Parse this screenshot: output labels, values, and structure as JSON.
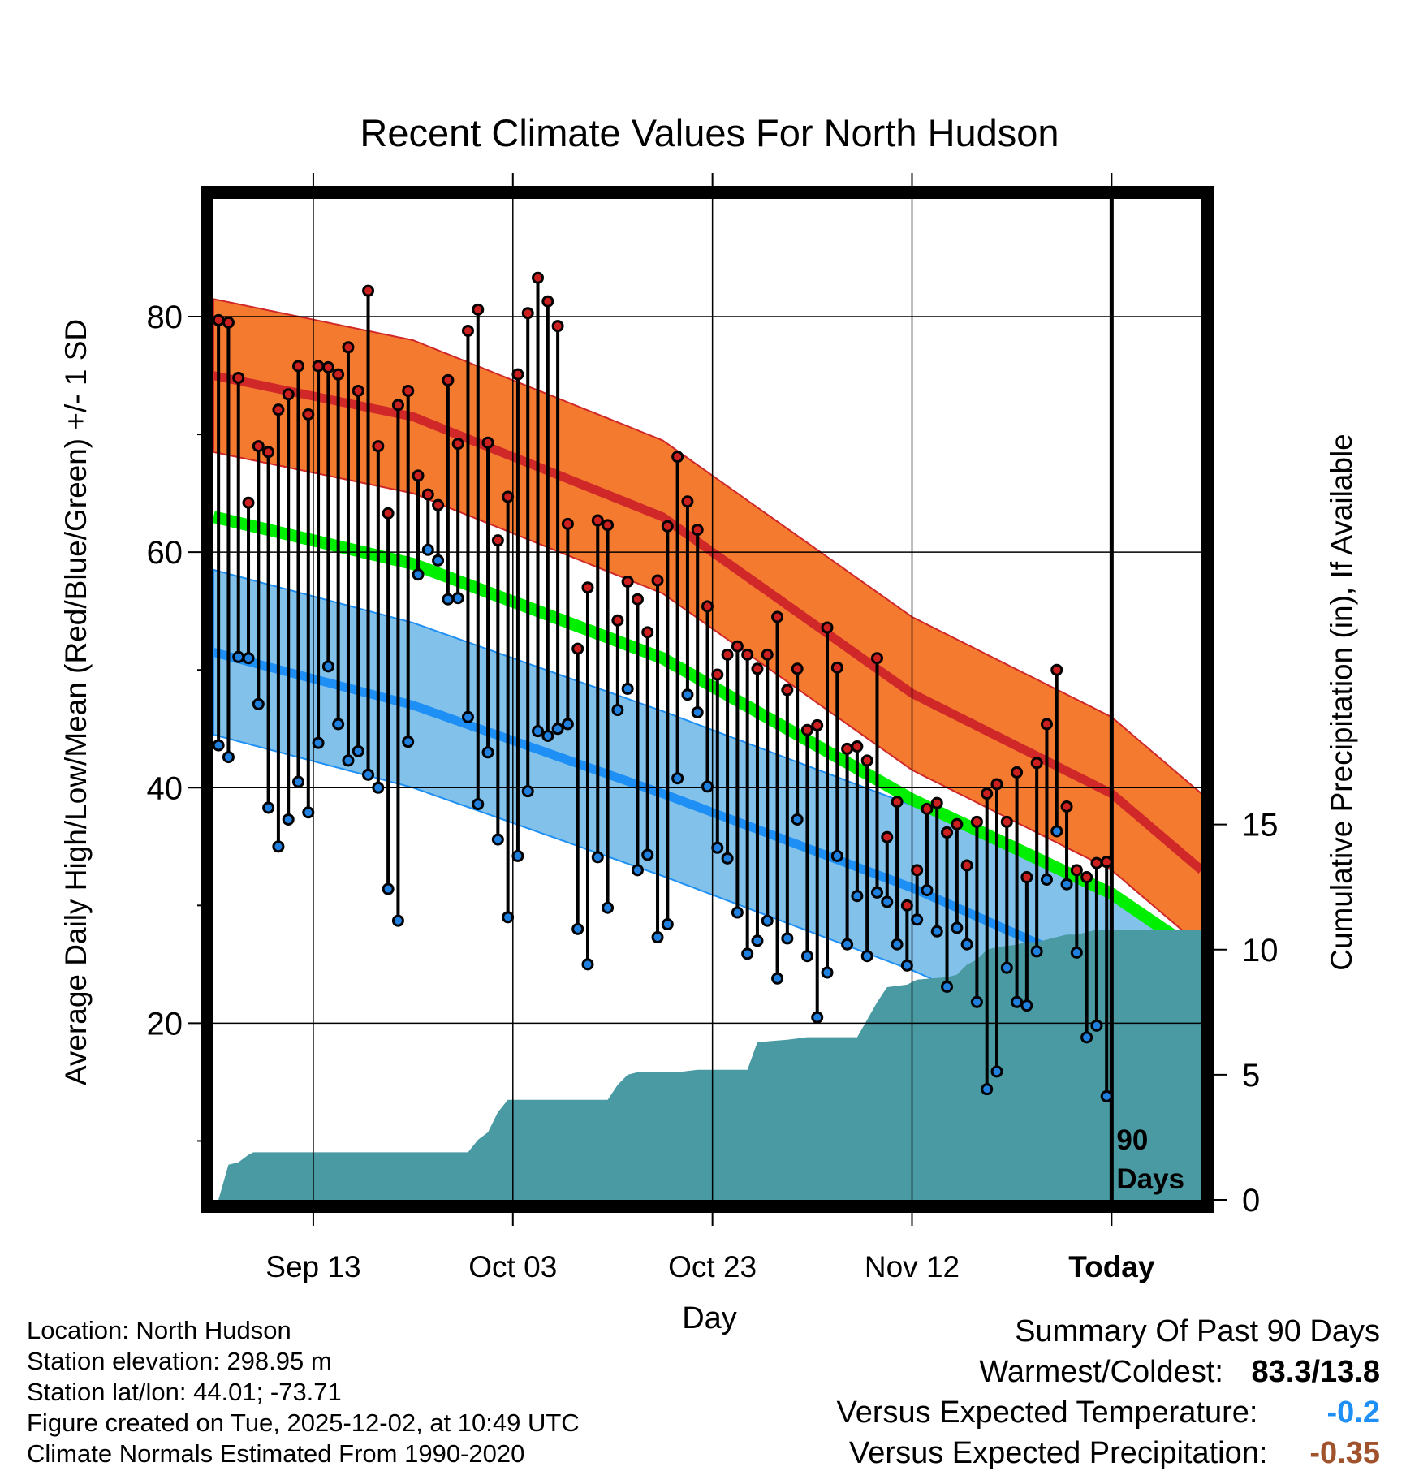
{
  "chart_data": {
    "type": "line",
    "title": "Recent Climate Values For North Hudson",
    "xlabel": "Day",
    "ylabel_left": "Average Daily High/Low/Mean (Red/Blue/Green) +/- 1 SD",
    "ylabel_right": "Cumulative Precipitation (in), If Available",
    "x_range": [
      -90,
      9
    ],
    "y_range": [
      5,
      90
    ],
    "precip_range": [
      0,
      40
    ],
    "x_tick_values": [
      -80,
      -60,
      -40,
      -20,
      0
    ],
    "x_tick_labels": [
      "Sep 13",
      "Oct 03",
      "Oct 23",
      "Nov 12",
      "Today"
    ],
    "y_tick_values": [
      20,
      40,
      60,
      80
    ],
    "y_tick_labels": [
      "20",
      "40",
      "60",
      "80"
    ],
    "precip_tick_values": [
      0,
      5,
      10,
      15
    ],
    "precip_tick_labels": [
      "0",
      "5",
      "10",
      "15"
    ],
    "today_label": "90 Days",
    "normal_high": [
      [
        -90,
        75.0
      ],
      [
        -70,
        71.5
      ],
      [
        -45,
        63.0
      ],
      [
        -20,
        48.0
      ],
      [
        0,
        39.5
      ],
      [
        9,
        33.0
      ]
    ],
    "high_sd": 6.5,
    "normal_low": [
      [
        -90,
        51.5
      ],
      [
        -70,
        47.0
      ],
      [
        -45,
        39.5
      ],
      [
        -20,
        31.5
      ],
      [
        0,
        24.0
      ],
      [
        9,
        19.0
      ]
    ],
    "low_sd": 7.0,
    "normal_mean": [
      [
        -90,
        63.0
      ],
      [
        -70,
        59.0
      ],
      [
        -45,
        51.0
      ],
      [
        -20,
        39.0
      ],
      [
        0,
        31.0
      ],
      [
        9,
        25.8
      ]
    ],
    "daily_high": [
      79.7,
      79.5,
      74.8,
      64.2,
      69.0,
      68.5,
      72.1,
      73.4,
      75.8,
      71.7,
      75.8,
      75.7,
      75.1,
      77.4,
      73.7,
      82.2,
      69.0,
      63.3,
      72.5,
      73.7,
      66.5,
      64.9,
      64.0,
      74.6,
      69.2,
      78.8,
      80.6,
      69.3,
      61.0,
      64.7,
      75.1,
      80.3,
      83.3,
      81.3,
      79.2,
      62.4,
      51.8,
      57.0,
      62.7,
      62.3,
      54.2,
      57.5,
      56.0,
      53.2,
      57.6,
      62.2,
      68.1,
      64.3,
      61.9,
      55.4,
      49.6,
      51.3,
      52.0,
      51.3,
      50.1,
      51.3,
      54.5,
      48.3,
      50.1,
      44.9,
      45.3,
      53.6,
      50.2,
      43.3,
      43.5,
      42.3,
      51.0,
      35.8,
      38.8,
      30.0,
      33.0,
      38.2,
      38.7,
      36.2,
      36.9,
      33.4,
      37.1,
      39.5,
      40.3,
      37.1,
      41.3,
      32.4,
      42.1,
      45.4,
      50.0,
      38.4,
      33.0,
      32.4,
      33.6,
      33.7
    ],
    "daily_low": [
      43.6,
      42.6,
      51.1,
      51.0,
      47.1,
      38.3,
      35.0,
      37.3,
      40.5,
      37.9,
      43.8,
      50.3,
      45.4,
      42.3,
      43.1,
      41.1,
      40.0,
      31.4,
      28.7,
      43.9,
      58.1,
      60.2,
      59.3,
      56.0,
      56.1,
      46.0,
      38.6,
      43.0,
      35.6,
      29.0,
      34.2,
      39.7,
      44.8,
      44.4,
      45.0,
      45.4,
      28.0,
      25.0,
      34.1,
      29.8,
      46.6,
      48.4,
      33.0,
      34.3,
      27.3,
      28.4,
      40.8,
      47.9,
      46.4,
      40.1,
      34.9,
      34.0,
      29.4,
      25.9,
      27.0,
      28.7,
      23.8,
      27.2,
      37.3,
      25.7,
      20.5,
      24.3,
      34.2,
      26.7,
      30.8,
      25.7,
      31.1,
      30.3,
      26.7,
      24.9,
      28.8,
      31.3,
      27.8,
      23.1,
      28.1,
      26.7,
      21.8,
      14.4,
      15.9,
      24.7,
      21.8,
      21.5,
      26.1,
      32.2,
      36.3,
      31.8,
      26.0,
      18.8,
      19.8,
      13.8
    ],
    "cumulative_precip": [
      [
        -89.5,
        0.0
      ],
      [
        -88.5,
        1.4
      ],
      [
        -87.5,
        1.5
      ],
      [
        -86.5,
        1.8
      ],
      [
        -86.0,
        1.9
      ],
      [
        -70,
        1.9
      ],
      [
        -70,
        1.9
      ],
      [
        -64.5,
        1.9
      ],
      [
        -63.5,
        2.4
      ],
      [
        -62.5,
        2.7
      ],
      [
        -61.5,
        3.5
      ],
      [
        -60.5,
        4.0
      ],
      [
        -50.5,
        4.0
      ],
      [
        -49.5,
        4.6
      ],
      [
        -48.5,
        5.0
      ],
      [
        -47.5,
        5.1
      ],
      [
        -43.5,
        5.1
      ],
      [
        -41.5,
        5.2
      ],
      [
        -36.5,
        5.2
      ],
      [
        -35.5,
        6.3
      ],
      [
        -32.5,
        6.4
      ],
      [
        -30.5,
        6.5
      ],
      [
        -25.5,
        6.5
      ],
      [
        -24.5,
        7.2
      ],
      [
        -23.5,
        7.9
      ],
      [
        -22.5,
        8.5
      ],
      [
        -20.5,
        8.6
      ],
      [
        -19.5,
        8.8
      ],
      [
        -16.5,
        8.9
      ],
      [
        -15.5,
        9.0
      ],
      [
        -14.5,
        9.4
      ],
      [
        -13.5,
        9.6
      ],
      [
        -12.5,
        10.0
      ],
      [
        -11.5,
        10.1
      ],
      [
        -9.5,
        10.2
      ],
      [
        -8.5,
        10.3
      ],
      [
        -7.5,
        10.3
      ],
      [
        -6.5,
        10.4
      ],
      [
        -5.5,
        10.5
      ],
      [
        -4.5,
        10.6
      ],
      [
        -3.5,
        10.6
      ],
      [
        -2.5,
        10.7
      ],
      [
        -1.5,
        10.8
      ],
      [
        0.5,
        10.8
      ],
      [
        9,
        10.8
      ]
    ],
    "colors": {
      "high_band": "#f47a30",
      "high_line": "#d02828",
      "low_band": "#82c2ea",
      "low_line": "#1e8ff4",
      "mean_line": "#00ee00",
      "precip_fill": "#4a9aa3",
      "dark_overlap": "#9a1c1c",
      "high_dot": "#cc2020",
      "low_dot": "#2080e0"
    }
  },
  "info": {
    "location": "Location: North Hudson",
    "elevation": "Station elevation: 298.95 m",
    "latlon": "Station lat/lon: 44.01; -73.71",
    "created": "Figure created on Tue, 2025-12-02, at 10:49 UTC",
    "normals": "Climate Normals Estimated From 1990-2020"
  },
  "summary": {
    "title": "Summary Of Past 90 Days",
    "warmest_coldest_label": "Warmest/Coldest:",
    "warmest_coldest_value": "83.3/13.8",
    "temp_label": "Versus Expected Temperature:",
    "temp_value": "-0.2",
    "temp_color": "#1e8ff4",
    "precip_label": "Versus Expected Precipitation:",
    "precip_value": "-0.35",
    "precip_color": "#a0522d"
  }
}
